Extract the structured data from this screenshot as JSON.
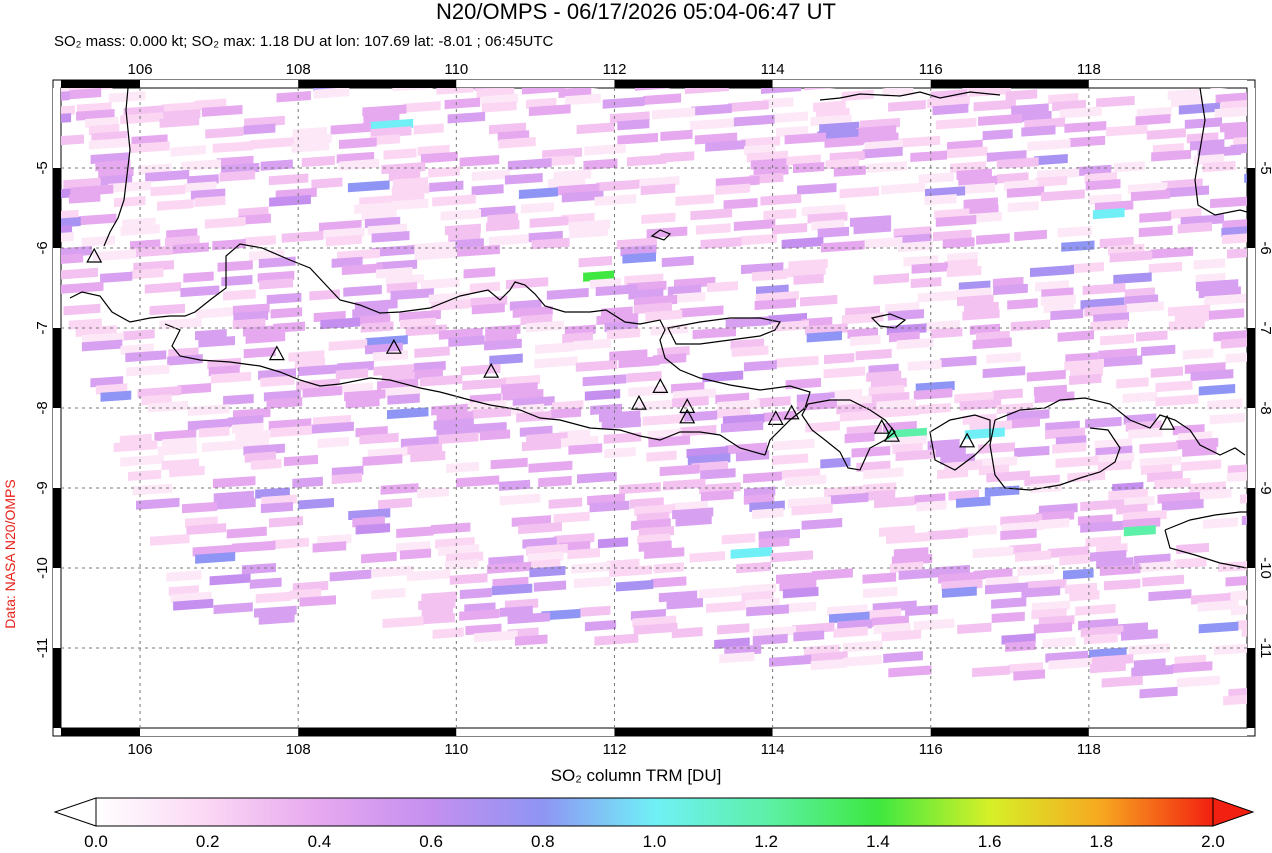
{
  "title": "N20/OMPS - 06/17/2026 05:04-06:47 UT",
  "subtitle_html": "SO₂ mass: 0.000 kt; SO₂ max: 1.18 DU at lon: 107.69 lat: -8.01 ; 06:45UTC",
  "side_credit": "Data: NASA N20/OMPS",
  "colorbar": {
    "title": "SO₂ column TRM [DU]",
    "ticks": [
      "0.0",
      "0.2",
      "0.4",
      "0.6",
      "0.8",
      "1.0",
      "1.2",
      "1.4",
      "1.6",
      "1.8",
      "2.0"
    ],
    "min": 0.0,
    "max": 2.0,
    "colors": [
      "#ffffff",
      "#fbd7f4",
      "#e6a8ef",
      "#c48fef",
      "#8f95f4",
      "#70f0f6",
      "#5df0a8",
      "#3ee840",
      "#d6f028",
      "#f7a820",
      "#f22010"
    ]
  },
  "map": {
    "lon_range": [
      105.0,
      120.0
    ],
    "lat_range": [
      -12.0,
      -4.0
    ],
    "lon_ticks": [
      "106",
      "108",
      "110",
      "112",
      "114",
      "116",
      "118"
    ],
    "lat_ticks": [
      "-5",
      "-6",
      "-7",
      "-8",
      "-9",
      "-10",
      "-11"
    ],
    "gridlines": "dashed",
    "volcano_marker": "open-triangle",
    "volcanoes": [
      {
        "lon": 105.42,
        "lat": -6.1
      },
      {
        "lon": 107.73,
        "lat": -7.32
      },
      {
        "lon": 109.21,
        "lat": -7.24
      },
      {
        "lon": 110.44,
        "lat": -7.54
      },
      {
        "lon": 112.31,
        "lat": -7.94
      },
      {
        "lon": 112.58,
        "lat": -7.73
      },
      {
        "lon": 112.92,
        "lat": -7.98
      },
      {
        "lon": 112.92,
        "lat": -8.11
      },
      {
        "lon": 114.04,
        "lat": -8.13
      },
      {
        "lon": 114.24,
        "lat": -8.06
      },
      {
        "lon": 115.38,
        "lat": -8.24
      },
      {
        "lon": 115.51,
        "lat": -8.34
      },
      {
        "lon": 116.46,
        "lat": -8.41
      },
      {
        "lon": 118.99,
        "lat": -8.19
      }
    ]
  }
}
